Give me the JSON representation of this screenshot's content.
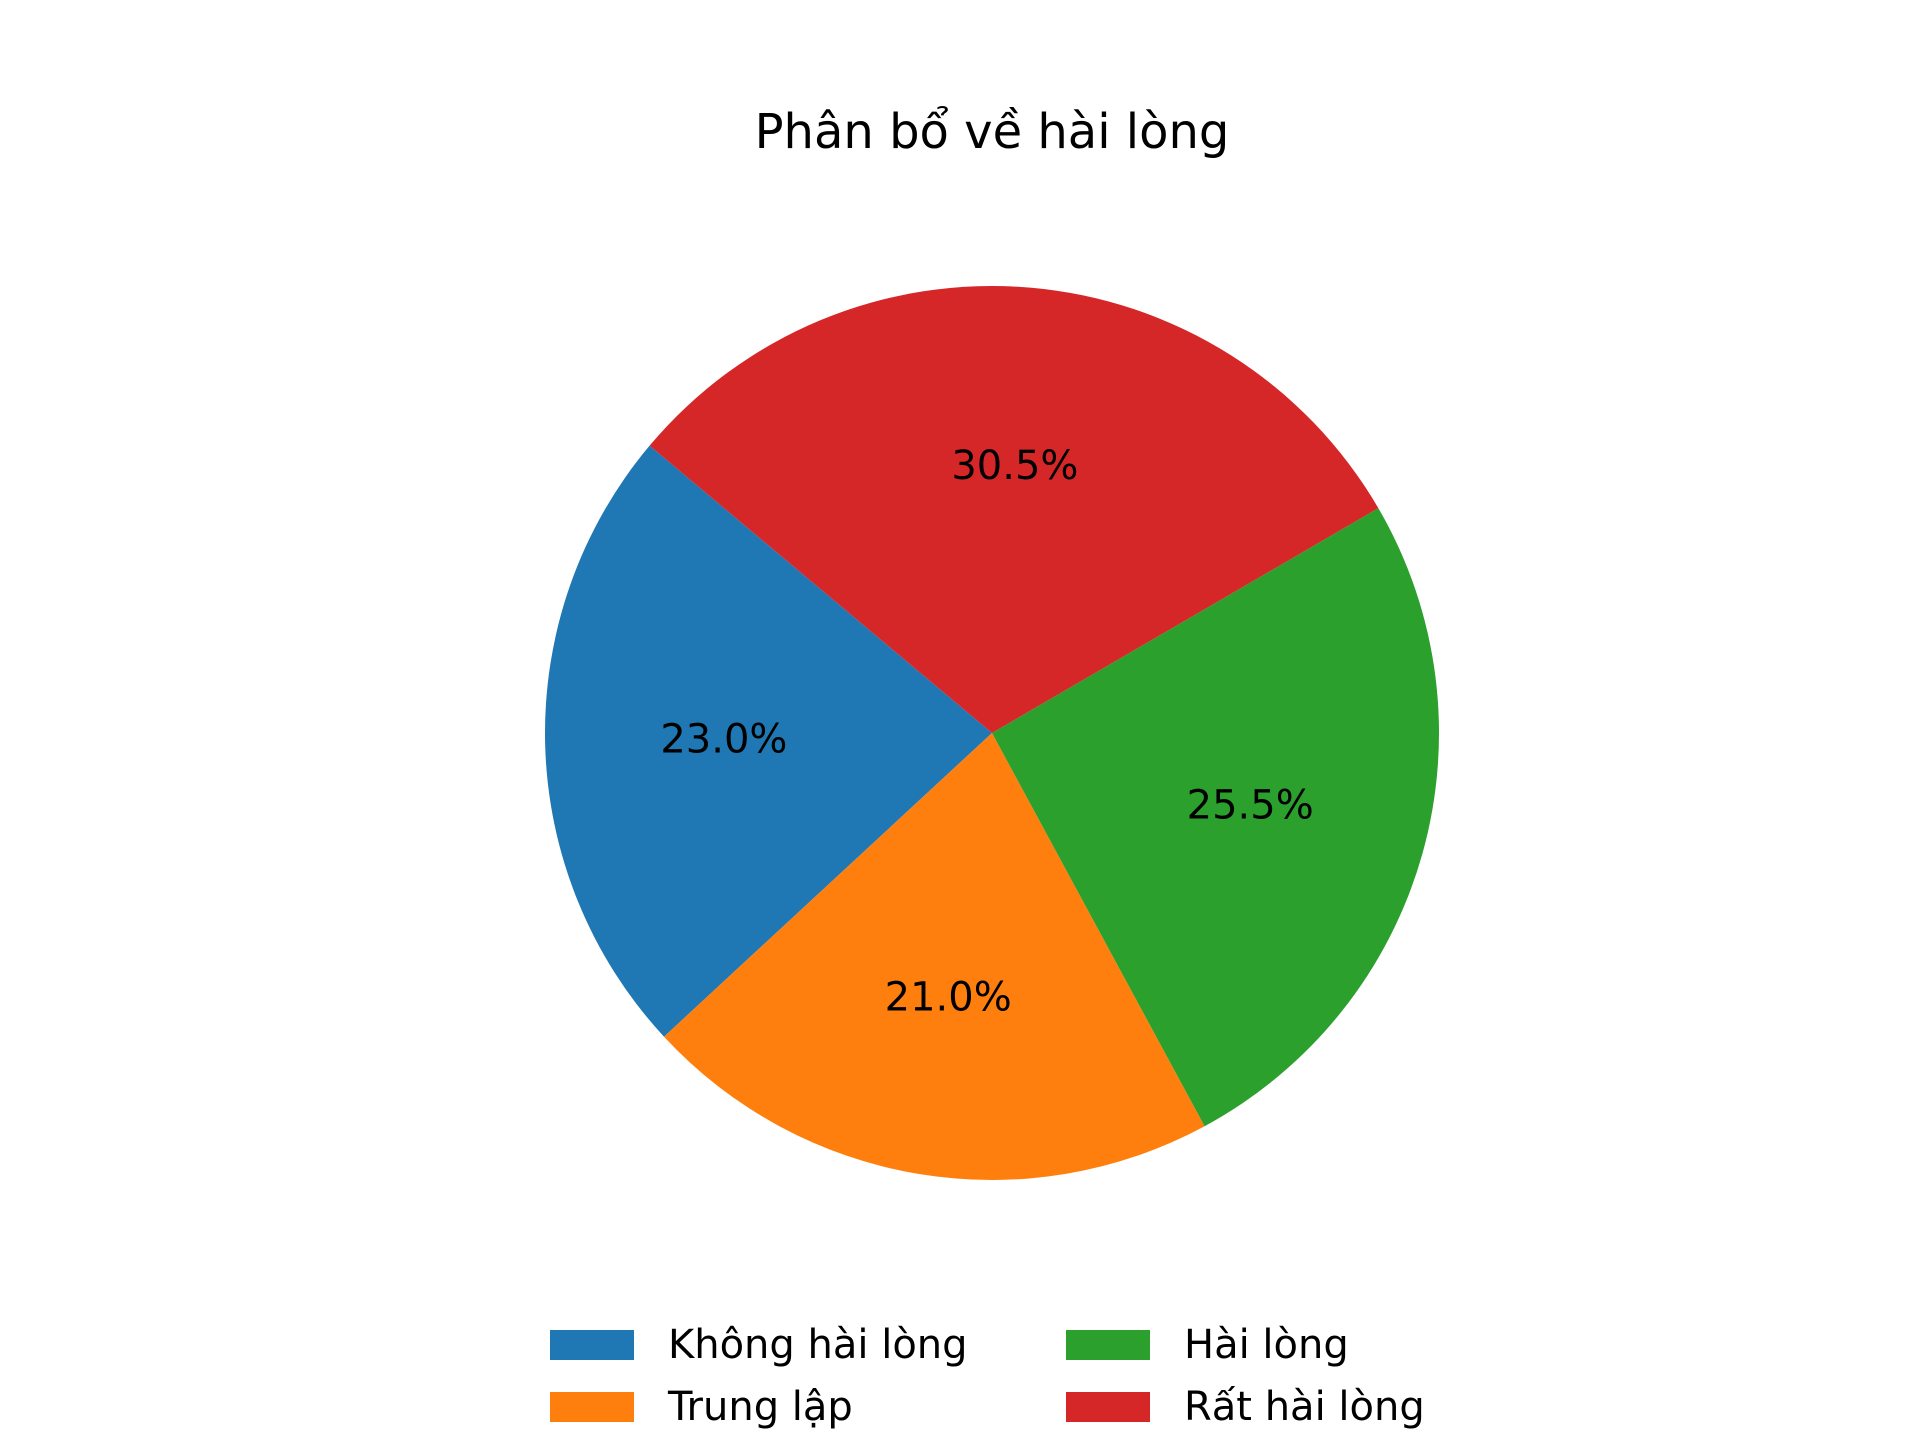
{
  "chart_data": {
    "type": "pie",
    "title": "Phân bổ về hài lòng",
    "slices": [
      {
        "name": "Không hài lòng",
        "value": 23.0,
        "label": "23.0%",
        "color": "#1f77b4"
      },
      {
        "name": "Trung lập",
        "value": 21.0,
        "label": "21.0%",
        "color": "#ff7f0e"
      },
      {
        "name": "Hài lòng",
        "value": 25.5,
        "label": "25.5%",
        "color": "#2ca02c"
      },
      {
        "name": "Rất hài lòng",
        "value": 30.5,
        "label": "30.5%",
        "color": "#d62728"
      }
    ],
    "start_angle_deg": 140,
    "direction": "counterclockwise",
    "legend": {
      "placement": "bottom-center",
      "columns": 2
    }
  }
}
